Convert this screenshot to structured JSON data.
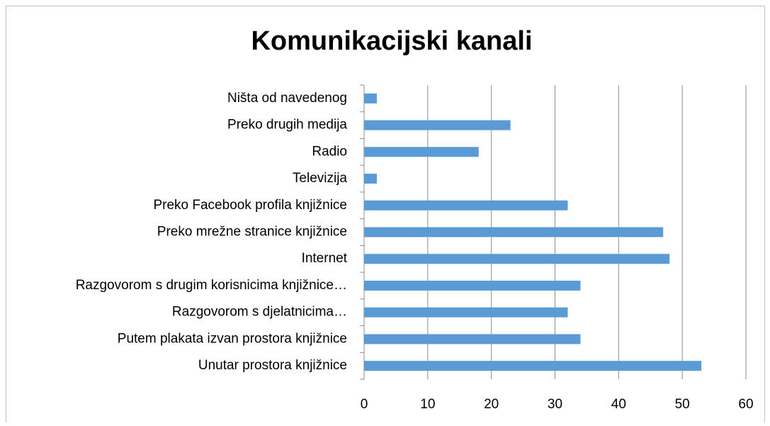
{
  "chart_data": {
    "type": "bar",
    "orientation": "horizontal",
    "title": "Komunikacijski kanali",
    "categories": [
      "Ništa od navedenog",
      "Preko drugih medija",
      "Radio",
      "Televizija",
      "Preko Facebook profila knjižnice",
      "Preko mrežne stranice knjižnice",
      "Internet",
      "Razgovorom s drugim korisnicima knjižnice…",
      "Razgovorom s djelatnicima…",
      "Putem plakata izvan prostora knjižnice",
      "Unutar prostora knjižnice"
    ],
    "values": [
      2,
      23,
      18,
      2,
      32,
      47,
      48,
      34,
      32,
      34,
      53
    ],
    "color": "#5b9bd5",
    "xlim": [
      0,
      60
    ],
    "xticks": [
      0,
      10,
      20,
      30,
      40,
      50,
      60
    ],
    "grid": true
  }
}
